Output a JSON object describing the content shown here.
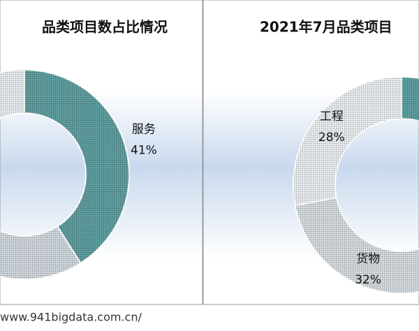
{
  "chart_data": [
    {
      "type": "donut",
      "title": "品类项目数占比情况",
      "categories": [
        "服务",
        null,
        null
      ],
      "values": [
        41,
        25,
        34
      ],
      "value_labels": [
        "41%",
        null,
        null
      ],
      "colors": [
        "#5f9ea0",
        "#cfd6dc",
        "#e6ebee"
      ]
    },
    {
      "type": "donut",
      "title": "2021年7月品类项目",
      "categories": [
        null,
        "货物",
        "工程"
      ],
      "values": [
        40,
        32,
        28
      ],
      "value_labels": [
        null,
        "32%",
        "28%"
      ],
      "colors": [
        "#5f9ea0",
        "#d4dade",
        "#e8ecef"
      ]
    }
  ],
  "footer": "www.941bigdata.com.cn/"
}
